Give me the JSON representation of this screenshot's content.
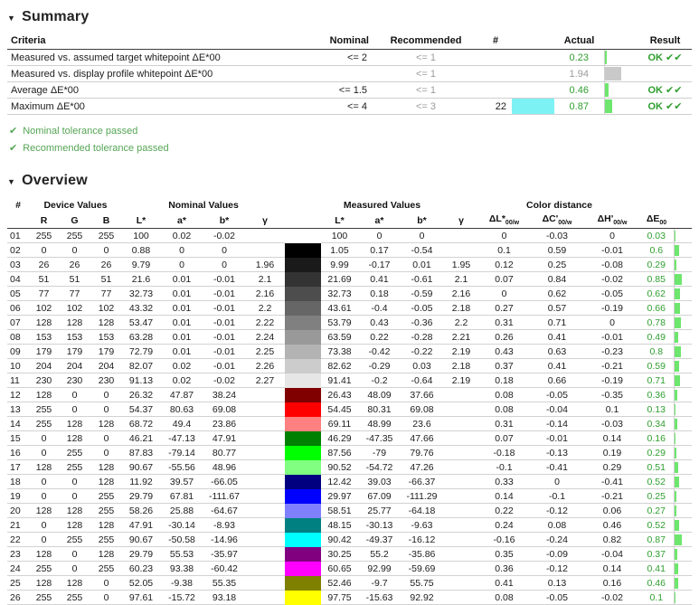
{
  "colors": {
    "value_green": "#2f9e2f",
    "note_green": "#55a555",
    "bar_green": "#6ee66e",
    "bar_gray": "#c9c9c9",
    "gray_text": "#9b9b9b",
    "max_patch_swatch": "#7df2f5"
  },
  "summary": {
    "collapse_icon": "▼",
    "title": "Summary",
    "columns": [
      "Criteria",
      "Nominal",
      "Recommended",
      "#",
      "Actual",
      "Result"
    ],
    "rows": [
      {
        "criteria": "Measured vs. assumed target whitepoint ΔE*00",
        "nominal": "<= 2",
        "recommended": "<= 1",
        "count": "",
        "swatch": null,
        "actual": "0.23",
        "actual_color": "green",
        "bar": {
          "value": 0.23,
          "color": "green"
        },
        "result": "OK ✔✔"
      },
      {
        "criteria": "Measured vs. display profile whitepoint ΔE*00",
        "nominal": "",
        "recommended": "<= 1",
        "count": "",
        "swatch": null,
        "actual": "1.94",
        "actual_color": "gray",
        "bar": {
          "value": 1.94,
          "color": "gray"
        },
        "result": ""
      },
      {
        "criteria": "Average ΔE*00",
        "nominal": "<= 1.5",
        "recommended": "<= 1",
        "count": "",
        "swatch": null,
        "actual": "0.46",
        "actual_color": "green",
        "bar": {
          "value": 0.46,
          "color": "green"
        },
        "result": "OK ✔✔"
      },
      {
        "criteria": "Maximum ΔE*00",
        "nominal": "<= 4",
        "recommended": "<= 3",
        "count": "22",
        "swatch": "#7df2f5",
        "actual": "0.87",
        "actual_color": "green",
        "bar": {
          "value": 0.87,
          "color": "green"
        },
        "result": "OK ✔✔"
      }
    ],
    "notes": [
      {
        "icon": "✔",
        "text": "Nominal tolerance passed"
      },
      {
        "icon": "✔",
        "text": "Recommended tolerance passed"
      }
    ]
  },
  "overview": {
    "collapse_icon": "▼",
    "title": "Overview",
    "groups": [
      {
        "label": "#",
        "span": 1
      },
      {
        "label": "Device Values",
        "span": 3
      },
      {
        "label": "Nominal Values",
        "span": 4
      },
      {
        "label": "Measured Values",
        "span": 5
      },
      {
        "label": "Color distance",
        "span": 3
      },
      {
        "label": "",
        "span": 2
      }
    ],
    "subcolumns": [
      {
        "t": ""
      },
      {
        "t": "R"
      },
      {
        "t": "G"
      },
      {
        "t": "B"
      },
      {
        "t": "L*"
      },
      {
        "t": "a*"
      },
      {
        "t": "b*"
      },
      {
        "t": "γ"
      },
      {
        "t": ""
      },
      {
        "t": "L*"
      },
      {
        "t": "a*"
      },
      {
        "t": "b*"
      },
      {
        "t": "γ"
      },
      {
        "t": "ΔL*",
        "sub": "00/w"
      },
      {
        "t": "ΔC'",
        "sub": "00/w"
      },
      {
        "t": "ΔH'",
        "sub": "00/w"
      },
      {
        "t": "ΔE",
        "sub": "00"
      },
      {
        "t": ""
      }
    ],
    "rows": [
      {
        "n": "01",
        "r": 255,
        "g": 255,
        "b": 255,
        "nom": [
          "100",
          "0.02",
          "-0.02",
          ""
        ],
        "meas": [
          "100",
          "0",
          "0",
          ""
        ],
        "dist": [
          "0",
          "-0.03",
          "0"
        ],
        "de": "0.03"
      },
      {
        "n": "02",
        "r": 0,
        "g": 0,
        "b": 0,
        "nom": [
          "0.88",
          "0",
          "0",
          ""
        ],
        "meas": [
          "1.05",
          "0.17",
          "-0.54",
          ""
        ],
        "dist": [
          "0.1",
          "0.59",
          "-0.01"
        ],
        "de": "0.6"
      },
      {
        "n": "03",
        "r": 26,
        "g": 26,
        "b": 26,
        "nom": [
          "9.79",
          "0",
          "0",
          "1.96"
        ],
        "meas": [
          "9.99",
          "-0.17",
          "0.01",
          "1.95"
        ],
        "dist": [
          "0.12",
          "0.25",
          "-0.08"
        ],
        "de": "0.29"
      },
      {
        "n": "04",
        "r": 51,
        "g": 51,
        "b": 51,
        "nom": [
          "21.6",
          "0.01",
          "-0.01",
          "2.1"
        ],
        "meas": [
          "21.69",
          "0.41",
          "-0.61",
          "2.1"
        ],
        "dist": [
          "0.07",
          "0.84",
          "-0.02"
        ],
        "de": "0.85"
      },
      {
        "n": "05",
        "r": 77,
        "g": 77,
        "b": 77,
        "nom": [
          "32.73",
          "0.01",
          "-0.01",
          "2.16"
        ],
        "meas": [
          "32.73",
          "0.18",
          "-0.59",
          "2.16"
        ],
        "dist": [
          "0",
          "0.62",
          "-0.05"
        ],
        "de": "0.62"
      },
      {
        "n": "06",
        "r": 102,
        "g": 102,
        "b": 102,
        "nom": [
          "43.32",
          "0.01",
          "-0.01",
          "2.2"
        ],
        "meas": [
          "43.61",
          "-0.4",
          "-0.05",
          "2.18"
        ],
        "dist": [
          "0.27",
          "0.57",
          "-0.19"
        ],
        "de": "0.66"
      },
      {
        "n": "07",
        "r": 128,
        "g": 128,
        "b": 128,
        "nom": [
          "53.47",
          "0.01",
          "-0.01",
          "2.22"
        ],
        "meas": [
          "53.79",
          "0.43",
          "-0.36",
          "2.2"
        ],
        "dist": [
          "0.31",
          "0.71",
          "0"
        ],
        "de": "0.78"
      },
      {
        "n": "08",
        "r": 153,
        "g": 153,
        "b": 153,
        "nom": [
          "63.28",
          "0.01",
          "-0.01",
          "2.24"
        ],
        "meas": [
          "63.59",
          "0.22",
          "-0.28",
          "2.21"
        ],
        "dist": [
          "0.26",
          "0.41",
          "-0.01"
        ],
        "de": "0.49"
      },
      {
        "n": "09",
        "r": 179,
        "g": 179,
        "b": 179,
        "nom": [
          "72.79",
          "0.01",
          "-0.01",
          "2.25"
        ],
        "meas": [
          "73.38",
          "-0.42",
          "-0.22",
          "2.19"
        ],
        "dist": [
          "0.43",
          "0.63",
          "-0.23"
        ],
        "de": "0.8"
      },
      {
        "n": "10",
        "r": 204,
        "g": 204,
        "b": 204,
        "nom": [
          "82.07",
          "0.02",
          "-0.01",
          "2.26"
        ],
        "meas": [
          "82.62",
          "-0.29",
          "0.03",
          "2.18"
        ],
        "dist": [
          "0.37",
          "0.41",
          "-0.21"
        ],
        "de": "0.59"
      },
      {
        "n": "11",
        "r": 230,
        "g": 230,
        "b": 230,
        "nom": [
          "91.13",
          "0.02",
          "-0.02",
          "2.27"
        ],
        "meas": [
          "91.41",
          "-0.2",
          "-0.64",
          "2.19"
        ],
        "dist": [
          "0.18",
          "0.66",
          "-0.19"
        ],
        "de": "0.71"
      },
      {
        "n": "12",
        "r": 128,
        "g": 0,
        "b": 0,
        "nom": [
          "26.32",
          "47.87",
          "38.24",
          ""
        ],
        "meas": [
          "26.43",
          "48.09",
          "37.66",
          ""
        ],
        "dist": [
          "0.08",
          "-0.05",
          "-0.35"
        ],
        "de": "0.36"
      },
      {
        "n": "13",
        "r": 255,
        "g": 0,
        "b": 0,
        "nom": [
          "54.37",
          "80.63",
          "69.08",
          ""
        ],
        "meas": [
          "54.45",
          "80.31",
          "69.08",
          ""
        ],
        "dist": [
          "0.08",
          "-0.04",
          "0.1"
        ],
        "de": "0.13"
      },
      {
        "n": "14",
        "r": 255,
        "g": 128,
        "b": 128,
        "nom": [
          "68.72",
          "49.4",
          "23.86",
          ""
        ],
        "meas": [
          "69.11",
          "48.99",
          "23.6",
          ""
        ],
        "dist": [
          "0.31",
          "-0.14",
          "-0.03"
        ],
        "de": "0.34"
      },
      {
        "n": "15",
        "r": 0,
        "g": 128,
        "b": 0,
        "nom": [
          "46.21",
          "-47.13",
          "47.91",
          ""
        ],
        "meas": [
          "46.29",
          "-47.35",
          "47.66",
          ""
        ],
        "dist": [
          "0.07",
          "-0.01",
          "0.14"
        ],
        "de": "0.16"
      },
      {
        "n": "16",
        "r": 0,
        "g": 255,
        "b": 0,
        "nom": [
          "87.83",
          "-79.14",
          "80.77",
          ""
        ],
        "meas": [
          "87.56",
          "-79",
          "79.76",
          ""
        ],
        "dist": [
          "-0.18",
          "-0.13",
          "0.19"
        ],
        "de": "0.29"
      },
      {
        "n": "17",
        "r": 128,
        "g": 255,
        "b": 128,
        "nom": [
          "90.67",
          "-55.56",
          "48.96",
          ""
        ],
        "meas": [
          "90.52",
          "-54.72",
          "47.26",
          ""
        ],
        "dist": [
          "-0.1",
          "-0.41",
          "0.29"
        ],
        "de": "0.51"
      },
      {
        "n": "18",
        "r": 0,
        "g": 0,
        "b": 128,
        "nom": [
          "11.92",
          "39.57",
          "-66.05",
          ""
        ],
        "meas": [
          "12.42",
          "39.03",
          "-66.37",
          ""
        ],
        "dist": [
          "0.33",
          "0",
          "-0.41"
        ],
        "de": "0.52"
      },
      {
        "n": "19",
        "r": 0,
        "g": 0,
        "b": 255,
        "nom": [
          "29.79",
          "67.81",
          "-111.67",
          ""
        ],
        "meas": [
          "29.97",
          "67.09",
          "-111.29",
          ""
        ],
        "dist": [
          "0.14",
          "-0.1",
          "-0.21"
        ],
        "de": "0.25"
      },
      {
        "n": "20",
        "r": 128,
        "g": 128,
        "b": 255,
        "nom": [
          "58.26",
          "25.88",
          "-64.67",
          ""
        ],
        "meas": [
          "58.51",
          "25.77",
          "-64.18",
          ""
        ],
        "dist": [
          "0.22",
          "-0.12",
          "0.06"
        ],
        "de": "0.27"
      },
      {
        "n": "21",
        "r": 0,
        "g": 128,
        "b": 128,
        "nom": [
          "47.91",
          "-30.14",
          "-8.93",
          ""
        ],
        "meas": [
          "48.15",
          "-30.13",
          "-9.63",
          ""
        ],
        "dist": [
          "0.24",
          "0.08",
          "0.46"
        ],
        "de": "0.52"
      },
      {
        "n": "22",
        "r": 0,
        "g": 255,
        "b": 255,
        "nom": [
          "90.67",
          "-50.58",
          "-14.96",
          ""
        ],
        "meas": [
          "90.42",
          "-49.37",
          "-16.12",
          ""
        ],
        "dist": [
          "-0.16",
          "-0.24",
          "0.82"
        ],
        "de": "0.87"
      },
      {
        "n": "23",
        "r": 128,
        "g": 0,
        "b": 128,
        "nom": [
          "29.79",
          "55.53",
          "-35.97",
          ""
        ],
        "meas": [
          "30.25",
          "55.2",
          "-35.86",
          ""
        ],
        "dist": [
          "0.35",
          "-0.09",
          "-0.04"
        ],
        "de": "0.37"
      },
      {
        "n": "24",
        "r": 255,
        "g": 0,
        "b": 255,
        "nom": [
          "60.23",
          "93.38",
          "-60.42",
          ""
        ],
        "meas": [
          "60.65",
          "92.99",
          "-59.69",
          ""
        ],
        "dist": [
          "0.36",
          "-0.12",
          "0.14"
        ],
        "de": "0.41"
      },
      {
        "n": "25",
        "r": 128,
        "g": 128,
        "b": 0,
        "nom": [
          "52.05",
          "-9.38",
          "55.35",
          ""
        ],
        "meas": [
          "52.46",
          "-9.7",
          "55.75",
          ""
        ],
        "dist": [
          "0.41",
          "0.13",
          "0.16"
        ],
        "de": "0.46"
      },
      {
        "n": "26",
        "r": 255,
        "g": 255,
        "b": 0,
        "nom": [
          "97.61",
          "-15.72",
          "93.18",
          ""
        ],
        "meas": [
          "97.75",
          "-15.63",
          "92.92",
          ""
        ],
        "dist": [
          "0.08",
          "-0.05",
          "-0.02"
        ],
        "de": "0.1"
      }
    ]
  }
}
